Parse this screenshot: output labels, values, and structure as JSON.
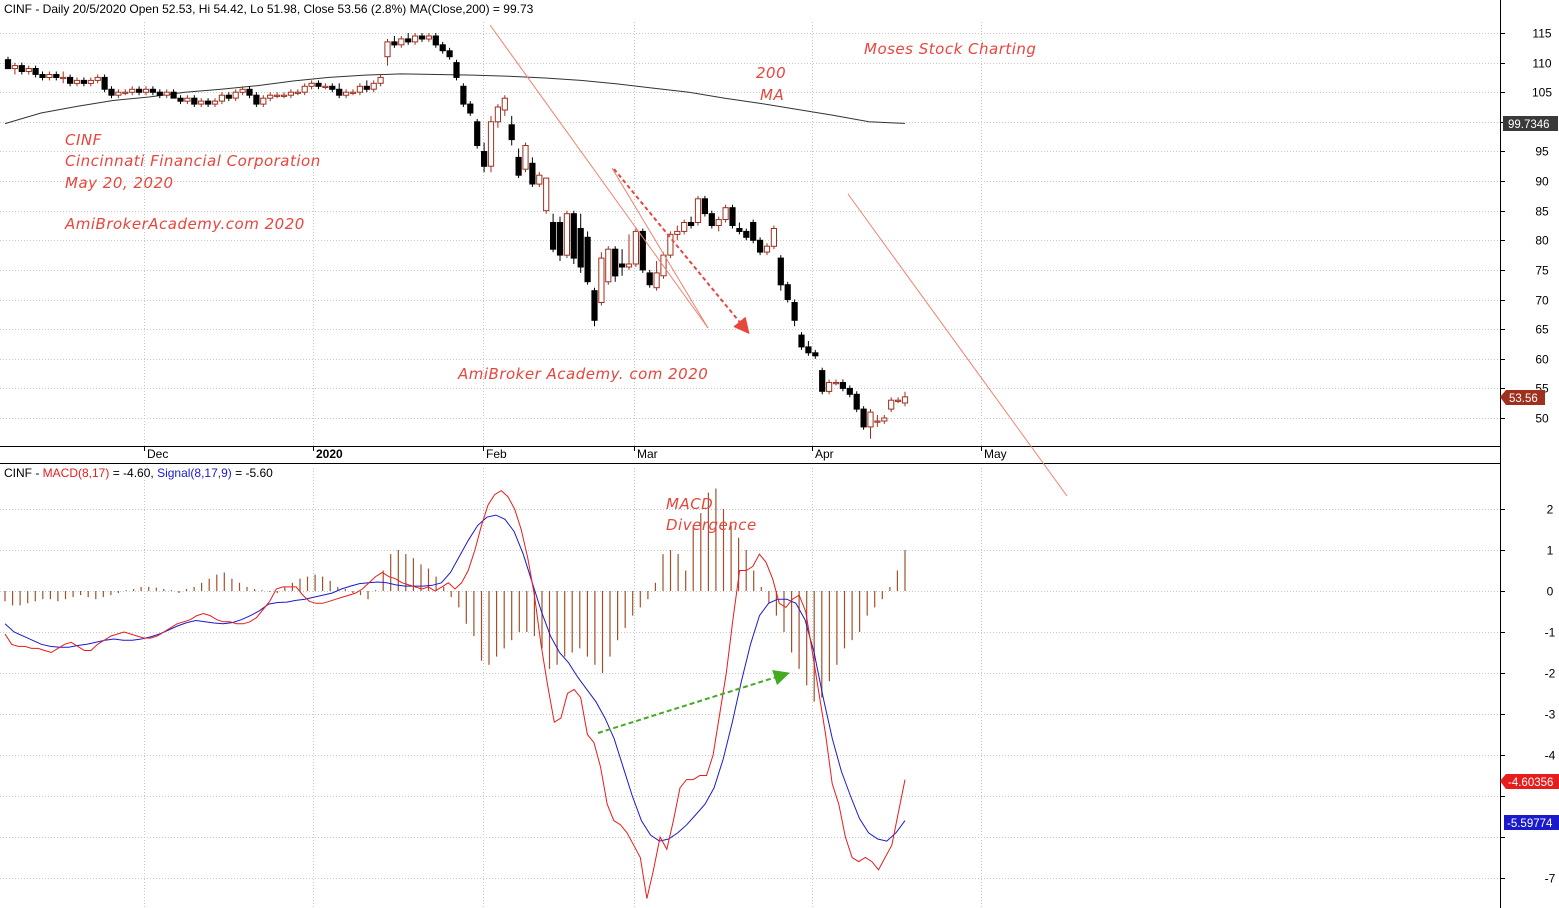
{
  "price_header": {
    "symbol": "CINF",
    "text": " - Daily 20/5/2020 Open 52.53, Hi 54.42, Lo 51.98, Close 53.56 (2.8%) MA(Close,200) = 99.73"
  },
  "macd_header": {
    "symbol": "CINF",
    "dash": " - ",
    "macd_label": "MACD(8,17)",
    "macd_value": " = -4.60, ",
    "signal_label": "Signal(8,17,9)",
    "signal_value": " = -5.60"
  },
  "annotations": {
    "moses": "Moses Stock Charting",
    "ma_200": "200",
    "ma_label": "MA",
    "ticker": "CINF",
    "company": "Cincinnati Financial Corporation",
    "date": "May 20, 2020",
    "site1": "AmiBrokerAcademy.com 2020",
    "site2": "AmiBroker Academy. com  2020",
    "macd_title": "MACD",
    "divergence": "Divergence"
  },
  "badges": {
    "ma_value": "99.7346",
    "close_value": "53.56",
    "macd_value": "-4.60356",
    "signal_value": "-5.59774"
  },
  "colors": {
    "up_candle": "#a0301e",
    "down_candle": "#000000",
    "ma_line": "#333333",
    "macd_line": "#e81c1c",
    "signal_line": "#1a1acc",
    "histogram": "#a0522d",
    "trendline": "#f08070",
    "annotation": "#e8453c",
    "divergence_arrow": "#44aa22"
  },
  "chart_data": [
    {
      "type": "candlestick",
      "title": "CINF - Daily 20/5/2020",
      "x_tick_labels": [
        "Dec",
        "2020",
        "Feb",
        "Mar",
        "Apr",
        "May"
      ],
      "y_ticks": [
        50,
        55,
        60,
        65,
        70,
        75,
        80,
        85,
        90,
        95,
        100,
        105,
        110,
        115
      ],
      "ylim": [
        44.5,
        119
      ],
      "grid": true,
      "ohlc": [
        [
          110.5,
          111,
          109,
          109
        ],
        [
          109,
          110,
          108,
          109.5
        ],
        [
          109.5,
          110,
          108,
          108.5
        ],
        [
          108.5,
          109.5,
          108,
          109
        ],
        [
          109,
          109.5,
          107.5,
          108
        ],
        [
          108,
          108.5,
          107,
          107.5
        ],
        [
          107.5,
          108.5,
          107,
          108
        ],
        [
          108,
          108.5,
          107,
          107.5
        ],
        [
          107.5,
          108.5,
          106.5,
          107.5
        ],
        [
          107.5,
          108,
          106,
          106.5
        ],
        [
          106.5,
          107.5,
          106,
          107
        ],
        [
          107,
          107.5,
          106,
          106.5
        ],
        [
          106.5,
          107.5,
          106,
          107
        ],
        [
          107,
          108,
          106.5,
          107.5
        ],
        [
          107.5,
          108,
          105,
          105.5
        ],
        [
          105.5,
          106,
          104,
          104.5
        ],
        [
          104.5,
          105.5,
          104,
          105
        ],
        [
          105,
          105.5,
          104.5,
          105
        ],
        [
          105,
          106,
          104.5,
          105.5
        ],
        [
          105.5,
          106,
          104.5,
          105
        ],
        [
          105,
          106,
          104.5,
          105.5
        ],
        [
          105.5,
          106,
          104.5,
          105
        ],
        [
          105,
          105.5,
          104,
          104.5
        ],
        [
          104.5,
          105.5,
          104,
          105
        ],
        [
          105,
          105.5,
          104,
          104
        ],
        [
          104,
          104.5,
          103,
          103.5
        ],
        [
          103.5,
          104.5,
          103,
          104
        ],
        [
          104,
          104.5,
          102.5,
          103
        ],
        [
          103,
          104,
          102.5,
          103.5
        ],
        [
          103.5,
          104,
          102.5,
          103
        ],
        [
          103,
          104,
          102.5,
          103.5
        ],
        [
          103.5,
          105,
          103,
          104.5
        ],
        [
          104.5,
          105,
          103.5,
          104
        ],
        [
          104,
          105.5,
          103.5,
          105
        ],
        [
          105,
          106,
          104.5,
          105.5
        ],
        [
          105.5,
          106,
          104,
          104.5
        ],
        [
          104.5,
          105,
          102.5,
          103
        ],
        [
          103,
          104.5,
          102.5,
          104
        ],
        [
          104,
          105,
          103.5,
          104.5
        ],
        [
          104.5,
          105,
          104,
          104.5
        ],
        [
          104.5,
          105,
          104,
          104.5
        ],
        [
          104.5,
          105.5,
          104,
          105
        ],
        [
          105,
          105.5,
          104.5,
          105
        ],
        [
          105,
          106.5,
          104.5,
          106
        ],
        [
          106,
          107,
          105.5,
          106.5
        ],
        [
          106.5,
          107,
          105.5,
          106
        ],
        [
          106,
          106.5,
          105.5,
          106
        ],
        [
          106,
          106.5,
          105,
          105.5
        ],
        [
          105.5,
          106.5,
          104,
          104.5
        ],
        [
          104.5,
          105.5,
          104,
          105
        ],
        [
          105,
          105.5,
          104.5,
          105
        ],
        [
          105,
          106.5,
          104.5,
          106
        ],
        [
          106,
          107,
          105,
          105.5
        ],
        [
          105.5,
          107,
          105,
          106.5
        ],
        [
          106.5,
          108,
          106,
          107.5
        ],
        [
          111,
          114,
          109.5,
          113.5
        ],
        [
          113.5,
          114.5,
          112.5,
          113
        ],
        [
          113,
          114.5,
          112.5,
          114
        ],
        [
          114,
          115,
          113,
          113.5
        ],
        [
          113.5,
          115,
          113,
          114.5
        ],
        [
          114.5,
          115,
          113.5,
          114
        ],
        [
          114,
          115,
          113.5,
          114.5
        ],
        [
          114.5,
          115,
          112.5,
          113
        ],
        [
          113,
          113.5,
          111.5,
          112
        ],
        [
          112,
          112.5,
          110.5,
          111
        ],
        [
          110,
          110.5,
          107,
          107.5
        ],
        [
          106,
          106.5,
          102.5,
          103
        ],
        [
          103,
          103.5,
          101,
          101.5
        ],
        [
          100,
          100.5,
          95.5,
          96
        ],
        [
          95,
          96.5,
          91.5,
          92.5
        ],
        [
          92.5,
          101,
          91.5,
          100
        ],
        [
          100,
          103,
          99,
          102.5
        ],
        [
          102,
          104.5,
          101,
          104
        ],
        [
          99.5,
          101,
          96,
          97
        ],
        [
          94,
          95.5,
          90.5,
          91
        ],
        [
          92,
          96.5,
          91.5,
          96
        ],
        [
          93,
          94,
          89,
          89.5
        ],
        [
          89.5,
          91.5,
          89,
          91
        ],
        [
          85,
          90.5,
          84.5,
          90.5
        ],
        [
          83,
          84.5,
          78,
          78.5
        ],
        [
          83,
          84,
          76.5,
          77.5
        ],
        [
          77.5,
          85,
          77,
          84.5
        ],
        [
          84.5,
          85,
          76,
          77
        ],
        [
          82,
          84.5,
          74.5,
          75.5
        ],
        [
          80.5,
          81.5,
          72.5,
          73
        ],
        [
          71.5,
          72,
          65.5,
          66.5
        ],
        [
          69.5,
          78,
          69,
          77
        ],
        [
          73,
          79,
          72.5,
          78.5
        ],
        [
          78.5,
          79,
          73,
          74
        ],
        [
          76,
          78.5,
          74,
          75.5
        ],
        [
          75.5,
          81,
          75,
          76
        ],
        [
          76,
          82,
          75.5,
          81.5
        ],
        [
          81.5,
          82,
          74.5,
          75
        ],
        [
          74.5,
          75,
          72,
          72.5
        ],
        [
          72,
          76.5,
          71.5,
          74.5
        ],
        [
          74,
          78,
          73.5,
          77.5
        ],
        [
          77.5,
          81.5,
          77,
          81
        ],
        [
          81,
          82.5,
          80,
          81.5
        ],
        [
          81.5,
          83.5,
          81,
          83
        ],
        [
          83,
          84,
          82,
          82.5
        ],
        [
          83,
          87.5,
          82.5,
          87
        ],
        [
          87,
          87.5,
          84,
          84.5
        ],
        [
          84.5,
          85,
          82,
          82.5
        ],
        [
          82.5,
          84,
          81.5,
          83.5
        ],
        [
          83.5,
          86,
          83,
          85.5
        ],
        [
          85.5,
          86,
          82,
          82.5
        ],
        [
          82,
          83,
          81,
          81.5
        ],
        [
          81.5,
          82,
          80,
          80.5
        ],
        [
          83,
          83.5,
          79.5,
          80
        ],
        [
          80,
          80.5,
          77.5,
          78
        ],
        [
          78,
          79.5,
          77.5,
          79
        ],
        [
          79,
          82.5,
          78.5,
          82
        ],
        [
          77,
          77.5,
          71.5,
          72.5
        ],
        [
          72.5,
          73,
          69.5,
          70
        ],
        [
          69.5,
          70,
          65.5,
          66.5
        ],
        [
          64,
          64.5,
          61.5,
          62
        ],
        [
          62,
          63,
          60.5,
          61
        ],
        [
          61,
          61.5,
          60,
          60.5
        ],
        [
          58,
          58.5,
          54,
          54.5
        ],
        [
          54.5,
          56.5,
          54,
          56
        ],
        [
          56,
          56.5,
          55.5,
          56
        ],
        [
          56,
          56.5,
          54.5,
          55
        ],
        [
          55,
          55.5,
          53.5,
          54
        ],
        [
          54,
          54.5,
          51,
          51.5
        ],
        [
          51.5,
          52,
          48,
          48.5
        ],
        [
          48.5,
          51.5,
          46.5,
          51
        ],
        [
          49.5,
          50.5,
          48.5,
          49.5
        ],
        [
          49.5,
          50.5,
          49,
          50
        ],
        [
          51.5,
          53.5,
          51,
          53
        ],
        [
          53,
          53.5,
          52.5,
          53
        ],
        [
          52.53,
          54.42,
          51.98,
          53.56
        ]
      ],
      "ma200": [
        99.7,
        101.5,
        102.6,
        103.6,
        104.2,
        105.0,
        105.5,
        106.1,
        106.9,
        107.5,
        107.9,
        108.1,
        108.0,
        107.9,
        107.7,
        107.4,
        107.0,
        106.4,
        105.7,
        105.0,
        104.0,
        103.1,
        102.1,
        101.1,
        100.0,
        99.73
      ]
    },
    {
      "type": "line",
      "title": "CINF - MACD(8,17) = -4.60, Signal(8,17,9) = -5.60",
      "y_ticks": [
        -7,
        -6,
        -5,
        -4,
        -3,
        -2,
        -1,
        0,
        1,
        2
      ],
      "ylim": [
        -7.8,
        2.9
      ],
      "series": [
        {
          "name": "MACD(8,17)",
          "values": [
            -1.05,
            -1.3,
            -1.35,
            -1.35,
            -1.4,
            -1.4,
            -1.45,
            -1.5,
            -1.4,
            -1.3,
            -1.25,
            -1.35,
            -1.45,
            -1.45,
            -1.3,
            -1.2,
            -1.1,
            -1.05,
            -1.0,
            -1.05,
            -1.1,
            -1.15,
            -1.15,
            -1.1,
            -1.0,
            -0.9,
            -0.8,
            -0.75,
            -0.7,
            -0.6,
            -0.55,
            -0.6,
            -0.7,
            -0.75,
            -0.75,
            -0.8,
            -0.8,
            -0.75,
            -0.65,
            -0.45,
            -0.25,
            0.05,
            0.1,
            0.1,
            0.1,
            -0.1,
            -0.25,
            -0.3,
            -0.3,
            -0.25,
            -0.2,
            -0.15,
            -0.1,
            -0.05,
            0.05,
            0.2,
            0.35,
            0.45,
            0.35,
            0.3,
            0.2,
            0.15,
            0.1,
            0.05,
            0.1,
            0.0,
            0.1,
            0.2,
            0.05,
            0.2,
            0.5,
            1.0,
            1.6,
            2.1,
            2.35,
            2.45,
            2.3,
            2.0,
            1.5,
            0.8,
            -0.1,
            -1.3,
            -2.3,
            -3.2,
            -3.1,
            -2.5,
            -2.4,
            -2.6,
            -3.5,
            -3.7,
            -4.3,
            -5.2,
            -5.6,
            -5.7,
            -5.9,
            -6.2,
            -6.5,
            -7.5,
            -6.8,
            -6.0,
            -6.3,
            -5.6,
            -4.8,
            -4.6,
            -4.6,
            -4.5,
            -4.5,
            -4.0,
            -3.0,
            -2.0,
            -0.7,
            0.5,
            0.5,
            0.6,
            0.9,
            0.7,
            0.3,
            -0.3,
            -0.4,
            -0.2,
            -0.1,
            -0.5,
            -1.5,
            -2.5,
            -3.5,
            -4.7,
            -5.2,
            -6.0,
            -6.5,
            -6.6,
            -6.5,
            -6.6,
            -6.8,
            -6.5,
            -6.2,
            -5.4,
            -4.6
          ]
        },
        {
          "name": "Signal(8,17,9)",
          "values": [
            -0.8,
            -1.0,
            -1.1,
            -1.2,
            -1.3,
            -1.35,
            -1.37,
            -1.37,
            -1.33,
            -1.3,
            -1.25,
            -1.2,
            -1.17,
            -1.2,
            -1.2,
            -1.17,
            -1.12,
            -1.05,
            -0.95,
            -0.85,
            -0.77,
            -0.72,
            -0.75,
            -0.78,
            -0.8,
            -0.77,
            -0.7,
            -0.6,
            -0.48,
            -0.32,
            -0.28,
            -0.27,
            -0.23,
            -0.2,
            -0.15,
            -0.1,
            -0.05,
            0.05,
            0.12,
            0.18,
            0.2,
            0.22,
            0.2,
            0.15,
            0.12,
            0.12,
            0.12,
            0.14,
            0.2,
            0.45,
            0.85,
            1.25,
            1.6,
            1.8,
            1.85,
            1.75,
            1.45,
            0.9,
            0.2,
            -0.5,
            -1.1,
            -1.5,
            -1.75,
            -2.1,
            -2.4,
            -2.7,
            -3.1,
            -3.6,
            -4.3,
            -5.0,
            -5.6,
            -5.95,
            -6.1,
            -6.05,
            -5.9,
            -5.7,
            -5.45,
            -5.2,
            -4.8,
            -4.1,
            -3.2,
            -2.2,
            -1.3,
            -0.6,
            -0.3,
            -0.2,
            -0.2,
            -0.3,
            -0.7,
            -1.5,
            -2.6,
            -3.6,
            -4.4,
            -5.0,
            -5.55,
            -5.9,
            -6.05,
            -6.1,
            -5.9,
            -5.6
          ]
        },
        {
          "name": "histogram",
          "values": [
            -0.25,
            -0.35,
            -0.35,
            -0.3,
            -0.25,
            -0.2,
            -0.2,
            -0.25,
            -0.2,
            -0.15,
            -0.1,
            -0.15,
            -0.2,
            -0.15,
            -0.1,
            -0.05,
            0.02,
            0.05,
            0.1,
            0.1,
            0.08,
            0.05,
            0.02,
            -0.05,
            0.05,
            0.1,
            0.2,
            0.3,
            0.4,
            0.45,
            0.3,
            0.2,
            0.1,
            0.05,
            0.02,
            -0.02,
            -0.05,
            0.1,
            0.2,
            0.3,
            0.35,
            0.4,
            0.35,
            0.25,
            0.1,
            0.05,
            -0.05,
            -0.1,
            -0.2,
            0.02,
            0.5,
            0.9,
            1.0,
            0.9,
            0.8,
            0.65,
            0.55,
            0.35,
            0.1,
            -0.15,
            -0.4,
            -0.8,
            -1.1,
            -1.7,
            -1.8,
            -1.6,
            -1.4,
            -1.2,
            -1.0,
            -1.0,
            -1.1,
            -1.4,
            -1.9,
            -1.8,
            -1.6,
            -1.5,
            -1.4,
            -1.6,
            -1.8,
            -2.0,
            -1.6,
            -1.2,
            -0.9,
            -0.6,
            -0.4,
            -0.2,
            0.2,
            0.9,
            1.0,
            0.9,
            0.5,
            1.6,
            1.9,
            2.4,
            2.5,
            2.0,
            1.6,
            1.3,
            1.0,
            0.5,
            0.1,
            -0.3,
            -0.6,
            -1.0,
            -1.5,
            -1.9,
            -2.3,
            -2.7,
            -2.6,
            -2.2,
            -1.8,
            -1.4,
            -1.2,
            -1.0,
            -0.6,
            -0.4,
            -0.2,
            0.1,
            0.5,
            1.0
          ]
        }
      ]
    }
  ]
}
